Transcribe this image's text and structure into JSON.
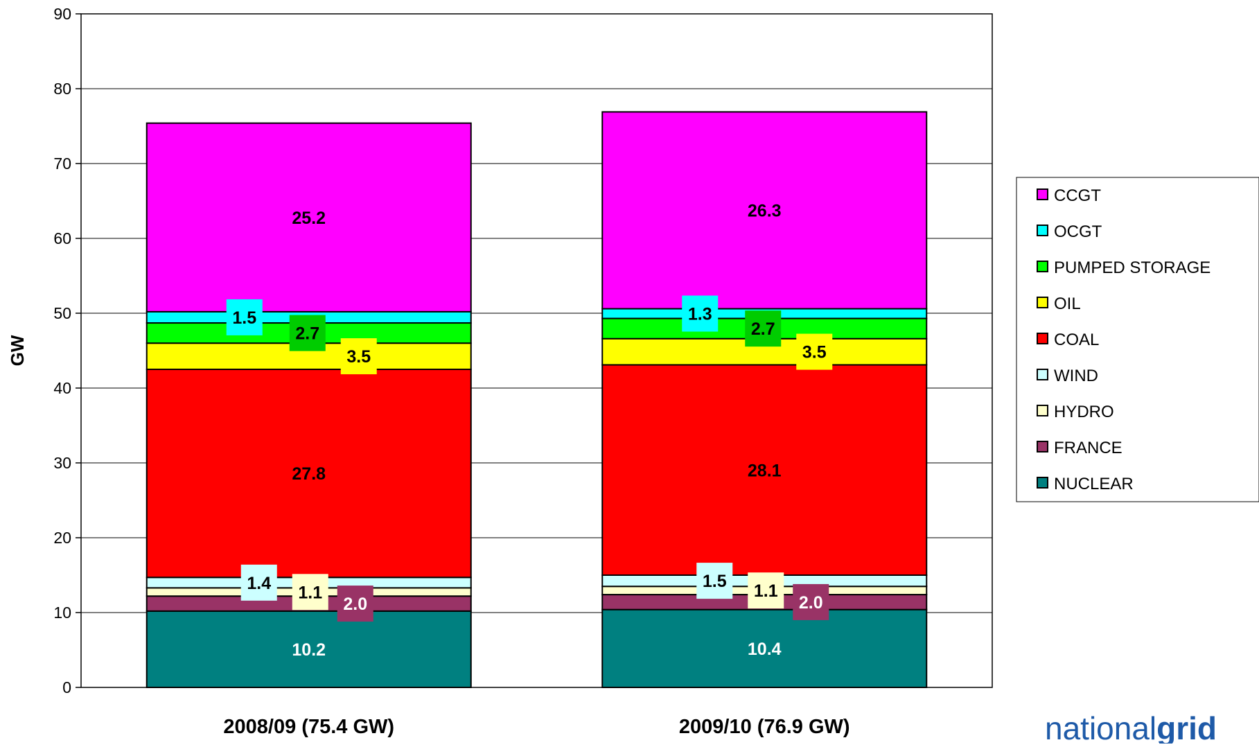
{
  "brand": {
    "part1": "national",
    "part2": "grid"
  },
  "chart_data": {
    "type": "bar",
    "stacked": true,
    "ylabel": "GW",
    "ylim": [
      0,
      90
    ],
    "yticks": [
      0,
      10,
      20,
      30,
      40,
      50,
      60,
      70,
      80,
      90
    ],
    "grid": true,
    "legend_position": "right",
    "categories": [
      "2008/09 (75.4 GW)",
      "2009/10 (76.9 GW)"
    ],
    "series": [
      {
        "name": "NUCLEAR",
        "color": "#008080",
        "values": [
          10.2,
          10.4
        ],
        "labels": [
          "10.2",
          "10.4"
        ],
        "label_color": "#ffffff",
        "label_bg": ""
      },
      {
        "name": "FRANCE",
        "color": "#993366",
        "values": [
          2.0,
          2.0
        ],
        "labels": [
          "2.0",
          "2.0"
        ],
        "label_color": "#ffffff",
        "label_bg": "#993366"
      },
      {
        "name": "HYDRO",
        "color": "#ffffcc",
        "values": [
          1.1,
          1.1
        ],
        "labels": [
          "1.1",
          "1.1"
        ],
        "label_color": "#000000",
        "label_bg": "#ffffcc"
      },
      {
        "name": "WIND",
        "color": "#ccffff",
        "values": [
          1.4,
          1.5
        ],
        "labels": [
          "1.4",
          "1.5"
        ],
        "label_color": "#000000",
        "label_bg": "#ccffff"
      },
      {
        "name": "COAL",
        "color": "#ff0000",
        "values": [
          27.8,
          28.1
        ],
        "labels": [
          "27.8",
          "28.1"
        ],
        "label_color": "#000000",
        "label_bg": ""
      },
      {
        "name": "OIL",
        "color": "#ffff00",
        "values": [
          3.5,
          3.5
        ],
        "labels": [
          "3.5",
          "3.5"
        ],
        "label_color": "#000000",
        "label_bg": "#ffff00"
      },
      {
        "name": "PUMPED STORAGE",
        "color": "#00ff00",
        "values": [
          2.7,
          2.7
        ],
        "labels": [
          "2.7",
          "2.7"
        ],
        "label_color": "#000000",
        "label_bg": "#00cc00"
      },
      {
        "name": "OCGT",
        "color": "#00ffff",
        "values": [
          1.5,
          1.3
        ],
        "labels": [
          "1.5",
          "1.3"
        ],
        "label_color": "#000000",
        "label_bg": "#00ffff"
      },
      {
        "name": "CCGT",
        "color": "#ff00ff",
        "values": [
          25.2,
          26.3
        ],
        "labels": [
          "25.2",
          "26.3"
        ],
        "label_color": "#000000",
        "label_bg": ""
      }
    ],
    "legend_order": [
      "CCGT",
      "OCGT",
      "PUMPED STORAGE",
      "OIL",
      "COAL",
      "WIND",
      "HYDRO",
      "FRANCE",
      "NUCLEAR"
    ]
  }
}
